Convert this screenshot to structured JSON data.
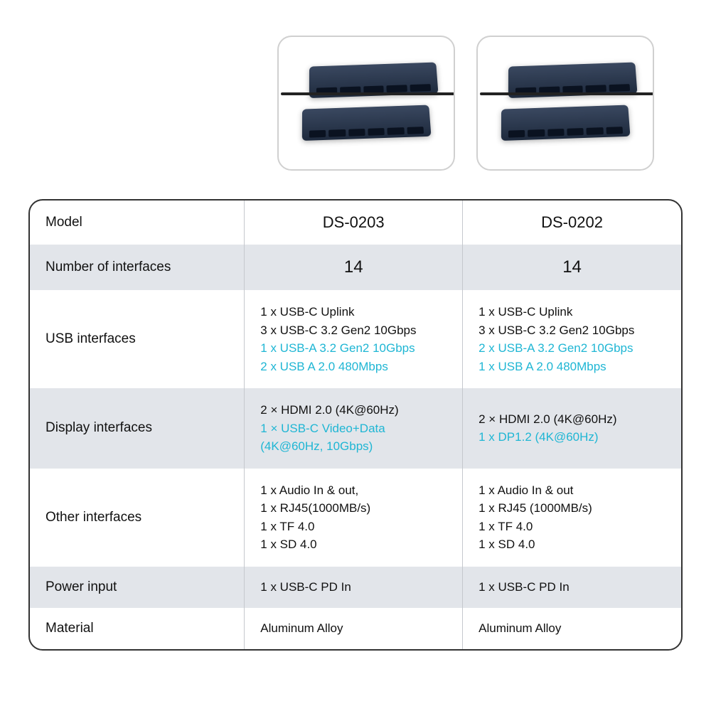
{
  "colors": {
    "highlight": "#1fb6d4",
    "alt_row_bg": "#e2e5ea",
    "border": "#333333",
    "cell_border": "#c5c8cd",
    "text": "#111111",
    "hub_dark": "#1e2a3d",
    "hub_light": "#3a4860"
  },
  "table": {
    "rows": [
      {
        "label": "Model",
        "col1": "DS-0203",
        "col2": "DS-0202",
        "header": true
      },
      {
        "label": "Number of interfaces",
        "col1": "14",
        "col2": "14",
        "bignum": true,
        "alt": true
      },
      {
        "label": "USB interfaces",
        "col1_lines": [
          {
            "text": "1 x USB-C Uplink",
            "hl": false
          },
          {
            "text": "3 x USB-C 3.2 Gen2 10Gbps",
            "hl": false
          },
          {
            "text": "1 x USB-A 3.2 Gen2 10Gbps",
            "hl": true
          },
          {
            "text": "2 x USB A 2.0 480Mbps",
            "hl": true
          }
        ],
        "col2_lines": [
          {
            "text": "1 x USB-C Uplink",
            "hl": false
          },
          {
            "text": "3 x USB-C 3.2 Gen2 10Gbps",
            "hl": false
          },
          {
            "text": "2 x USB-A 3.2 Gen2 10Gbps",
            "hl": true
          },
          {
            "text": "1 x USB A 2.0 480Mbps",
            "hl": true
          }
        ]
      },
      {
        "label": "Display interfaces",
        "alt": true,
        "col1_lines": [
          {
            "text": "2 × HDMI 2.0 (4K@60Hz)",
            "hl": false
          },
          {
            "text": "1 × USB-C Video+Data",
            "hl": true
          },
          {
            "text": "(4K@60Hz, 10Gbps)",
            "hl": true
          }
        ],
        "col2_lines": [
          {
            "text": "2 × HDMI 2.0 (4K@60Hz)",
            "hl": false
          },
          {
            "text": "1 x DP1.2 (4K@60Hz)",
            "hl": true
          }
        ]
      },
      {
        "label": "Other interfaces",
        "col1_lines": [
          {
            "text": "1 x Audio In & out,",
            "hl": false
          },
          {
            "text": "1 x RJ45(1000MB/s)",
            "hl": false
          },
          {
            "text": "1 x TF 4.0",
            "hl": false
          },
          {
            "text": "1 x SD 4.0",
            "hl": false
          }
        ],
        "col2_lines": [
          {
            "text": "1 x Audio In & out",
            "hl": false
          },
          {
            "text": "1 x RJ45 (1000MB/s)",
            "hl": false
          },
          {
            "text": "1 x TF 4.0",
            "hl": false
          },
          {
            "text": "1 x SD 4.0",
            "hl": false
          }
        ]
      },
      {
        "label": "Power input",
        "alt": true,
        "col1": "1 x USB-C PD In",
        "col2": "1 x USB-C PD In"
      },
      {
        "label": "Material",
        "col1": "Aluminum Alloy",
        "col2": "Aluminum Alloy"
      }
    ]
  }
}
